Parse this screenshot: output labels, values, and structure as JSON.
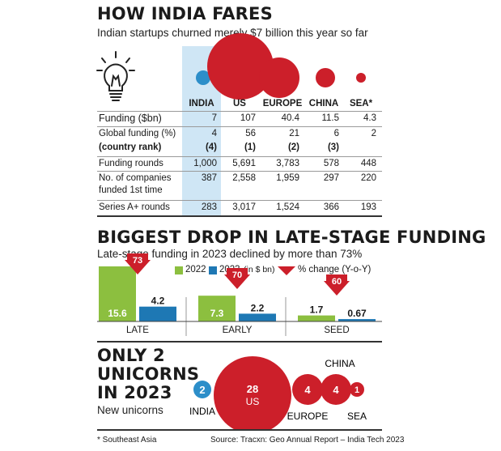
{
  "section1": {
    "title": "HOW INDIA FARES",
    "subtitle": "Indian startups churned merely $7 billion this year so far",
    "columns": [
      "INDIA",
      "US",
      "EUROPE",
      "CHINA",
      "SEA*"
    ],
    "rows": [
      {
        "label": "Funding ($bn)",
        "values": [
          "7",
          "107",
          "40.4",
          "11.5",
          "4.3"
        ]
      },
      {
        "label": "Global funding (%)",
        "values": [
          "4",
          "56",
          "21",
          "6",
          "2"
        ]
      },
      {
        "label": "(country rank)",
        "values": [
          "(4)",
          "(1)",
          "(2)",
          "(3)",
          ""
        ]
      },
      {
        "label": "Funding rounds",
        "values": [
          "1,000",
          "5,691",
          "3,783",
          "578",
          "448"
        ]
      },
      {
        "label": "No. of companies",
        "label2": "funded 1st time",
        "values": [
          "387",
          "2,558",
          "1,959",
          "297",
          "220"
        ]
      },
      {
        "label": "Series A+ rounds",
        "values": [
          "283",
          "3,017",
          "1,524",
          "366",
          "193"
        ]
      }
    ],
    "bubble_colors": {
      "india": "#2c8ec9",
      "other": "#cc1f2a",
      "highlight": "#cfe6f5"
    },
    "icon": "lightbulb-icon"
  },
  "section2": {
    "title": "BIGGEST DROP IN LATE-STAGE FUNDING",
    "subtitle": "Late-stage funding in 2023 declined by more than 73%",
    "legend": {
      "s2022": "2022",
      "s2023": "2023",
      "unit": "(in $ bn)",
      "change": "% change (Y-o-Y)"
    }
  },
  "section3": {
    "title_lines": [
      "ONLY 2",
      "UNICORNS",
      "IN 2023"
    ],
    "subtitle": "New unicorns",
    "bubbles": [
      {
        "label": "INDIA",
        "value": "2"
      },
      {
        "label": "US",
        "value": "28"
      },
      {
        "label": "EUROPE",
        "value": "4"
      },
      {
        "label": "CHINA",
        "value": "4"
      },
      {
        "label": "SEA",
        "value": "1"
      }
    ]
  },
  "footer": {
    "note": "* Southeast Asia",
    "source": "Source: Tracxn: Geo Annual Report – India Tech 2023"
  },
  "chart_data": [
    {
      "type": "bar",
      "categories": [
        "LATE",
        "EARLY",
        "SEED"
      ],
      "series": [
        {
          "name": "2022",
          "values": [
            15.6,
            7.3,
            1.7
          ],
          "color": "#8cbf3f"
        },
        {
          "name": "2023",
          "values": [
            4.2,
            2.2,
            0.67
          ],
          "color": "#1e78b4"
        }
      ],
      "pct_change": [
        73,
        70,
        60
      ],
      "change_color": "#cc1f2a"
    }
  ]
}
